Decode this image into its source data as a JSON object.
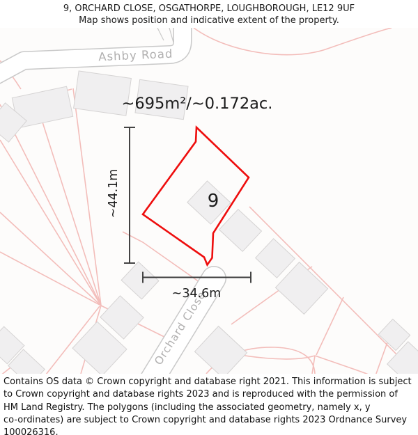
{
  "header": {
    "title": "9, ORCHARD CLOSE, OSGATHORPE, LOUGHBOROUGH, LE12 9UF",
    "subtitle": "Map shows position and indicative extent of the property."
  },
  "map": {
    "area_label": "~695m²/~0.172ac.",
    "plot_number": "9",
    "width_label": "~34.6m",
    "height_label": "~44.1m",
    "road_labels": {
      "ashby": "Ashby Road",
      "orchard": "Orchard Close"
    },
    "colors": {
      "boundary_red": "#ee0d0d",
      "parcel_pink": "#f3bdba",
      "road_casing": "#c9c9c9",
      "building_fill": "#f0eff0",
      "dimension": "#3a3a3a"
    }
  },
  "footer": {
    "lines": [
      "Contains OS data © Crown copyright and database right 2021. This information is subject",
      "to Crown copyright and database rights 2023 and is reproduced with the permission of",
      "HM Land Registry. The polygons (including the associated geometry, namely x, y",
      "co-ordinates) are subject to Crown copyright and database rights 2023 Ordnance Survey",
      "100026316."
    ]
  }
}
